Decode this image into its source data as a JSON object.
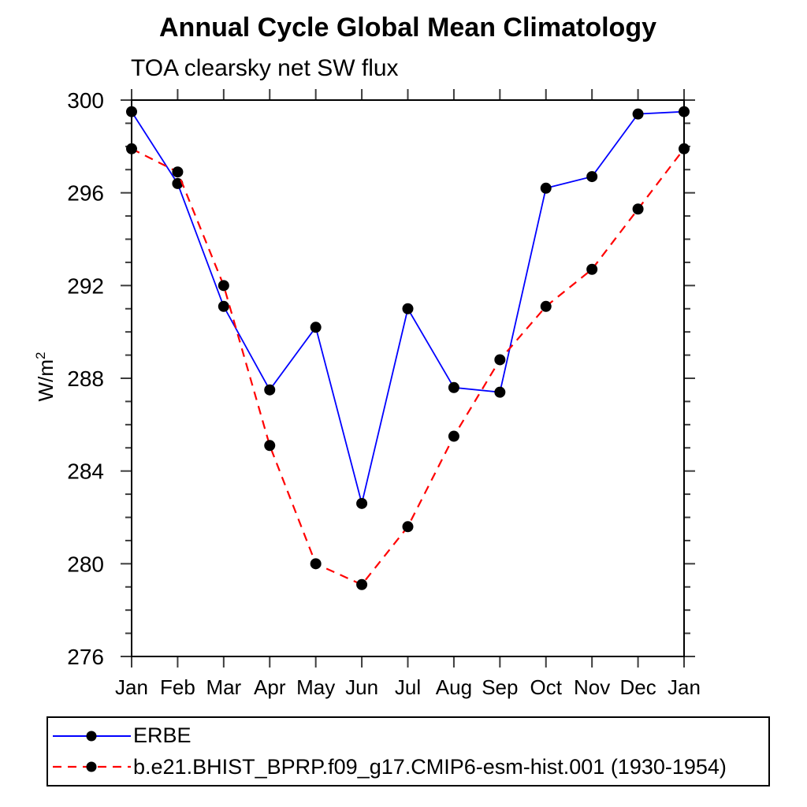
{
  "chart_data": {
    "type": "line",
    "title": "Annual Cycle Global Mean Climatology",
    "subtitle": "TOA clearsky net SW flux",
    "ylabel_base": "W/m",
    "ylabel_exponent": "2",
    "x_tick_labels": [
      "Jan",
      "Feb",
      "Mar",
      "Apr",
      "May",
      "Jun",
      "Jul",
      "Aug",
      "Sep",
      "Oct",
      "Nov",
      "Dec",
      "Jan"
    ],
    "y_axis": {
      "min": 276,
      "max": 300,
      "major_ticks": [
        276,
        280,
        284,
        288,
        292,
        296,
        300
      ],
      "minor_step": 1
    },
    "grid": false,
    "legend_position": "bottom-left",
    "colors": {
      "frame": "#000000",
      "ticks": "#3c3c3c",
      "marker": "#000000"
    },
    "series": [
      {
        "name": "ERBE",
        "line_color": "#0000ff",
        "line_style": "solid",
        "marker": "filled-circle",
        "marker_color": "#000000",
        "values": [
          299.5,
          296.4,
          291.1,
          287.5,
          290.2,
          282.6,
          291.0,
          287.6,
          287.4,
          296.2,
          296.7,
          299.4,
          299.5
        ]
      },
      {
        "name": "b.e21.BHIST_BPRP.f09_g17.CMIP6-esm-hist.001 (1930-1954)",
        "line_color": "#ff0000",
        "line_style": "dashed",
        "marker": "filled-circle",
        "marker_color": "#000000",
        "values": [
          297.9,
          296.9,
          292.0,
          285.1,
          280.0,
          279.1,
          281.6,
          285.5,
          288.8,
          291.1,
          292.7,
          295.3,
          297.9
        ]
      }
    ]
  }
}
